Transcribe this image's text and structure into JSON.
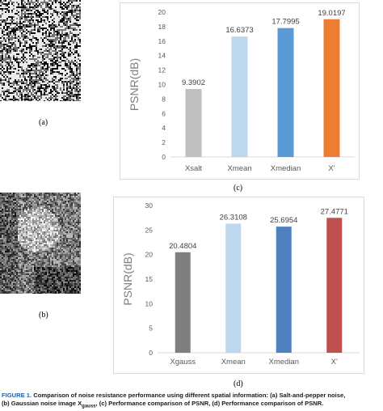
{
  "figure": {
    "sublabels": {
      "a": "(a)",
      "b": "(b)",
      "c": "(c)",
      "d": "(d)"
    },
    "caption_lead": "FIGURE 1.",
    "caption_text_1": "Comparison of noise resistance performance using different spatial information: (a) Salt-and-pepper noise,",
    "caption_text_2a": "(b) Gaussian noise image X",
    "caption_text_2sub": "gauss",
    "caption_text_2b": ", (c) Performance comparison of PSNR, (d) Performance comparison of PSNR."
  },
  "chart_data": [
    {
      "type": "bar",
      "title": "",
      "ylabel": "PSNR(dB)",
      "xlabel": "",
      "categories": [
        "Xsalt",
        "Xmean",
        "Xmedian",
        "X'"
      ],
      "values": [
        9.3902,
        16.6373,
        17.7995,
        19.0197
      ],
      "value_labels": [
        "9.3902",
        "16.6373",
        "17.7995",
        "19.0197"
      ],
      "ylim": [
        0,
        20
      ],
      "yticks": [
        "0",
        "2",
        "4",
        "6",
        "8",
        "10",
        "12",
        "14",
        "16",
        "18",
        "20"
      ],
      "colors": [
        "#bfbfbf",
        "#bdd7ee",
        "#5b9bd5",
        "#ed7d31"
      ],
      "grid": false
    },
    {
      "type": "bar",
      "title": "",
      "ylabel": "PSNR(dB)",
      "xlabel": "",
      "categories": [
        "Xgauss",
        "Xmean",
        "Xmedian",
        "X'"
      ],
      "values": [
        20.4804,
        26.3108,
        25.6954,
        27.4771
      ],
      "value_labels": [
        "20.4804",
        "26.3108",
        "25.6954",
        "27.4771"
      ],
      "ylim": [
        0,
        30
      ],
      "yticks": [
        "0",
        "5",
        "10",
        "15",
        "20",
        "25",
        "30"
      ],
      "colors": [
        "#7f7f7f",
        "#bdd7ee",
        "#4e81bd",
        "#c0504d"
      ],
      "grid": false
    }
  ]
}
